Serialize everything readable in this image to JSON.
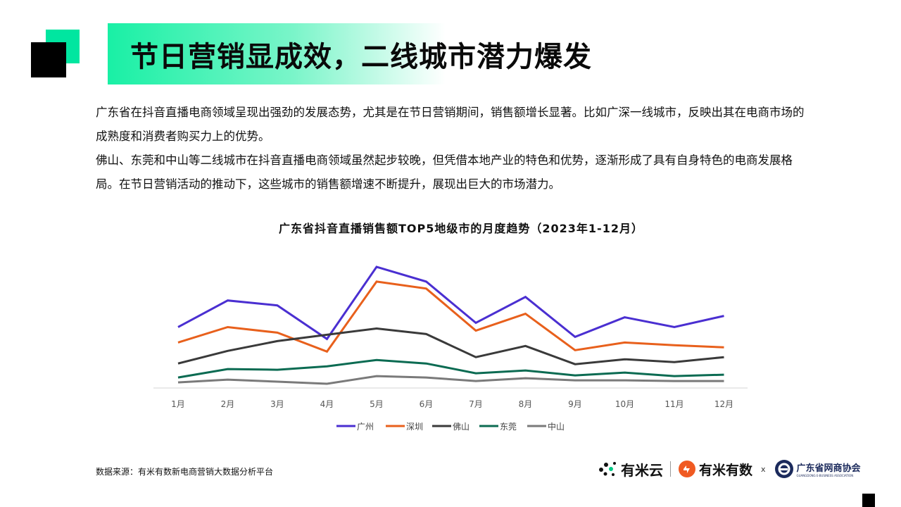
{
  "header": {
    "title": "节日营销显成效，二线城市潜力爆发"
  },
  "intro": {
    "paragraph1": "广东省在抖音直播电商领域呈现出强劲的发展态势，尤其是在节日营销期间，销售额增长显著。比如广深一线城市，反映出其在电商市场的成熟度和消费者购买力上的优势。",
    "paragraph2": "佛山、东莞和中山等二线城市在抖音直播电商领域虽然起步较晚，但凭借本地产业的特色和优势，逐渐形成了具有自身特色的电商发展格局。在节日营销活动的推动下，这些城市的销售额增速不断提升，展现出巨大的市场潜力。"
  },
  "chart_data": {
    "type": "line",
    "title": "广东省抖音直播销售额TOP5地级市的月度趋势（2023年1-12月）",
    "xlabel": "",
    "ylabel": "",
    "categories": [
      "1月",
      "2月",
      "3月",
      "4月",
      "5月",
      "6月",
      "7月",
      "8月",
      "9月",
      "10月",
      "11月",
      "12月"
    ],
    "ylim": [
      0,
      175
    ],
    "grid": false,
    "legend_position": "bottom",
    "series": [
      {
        "name": "广州",
        "color": "#4a2fd1",
        "values": [
          86,
          124,
          117,
          69,
          172,
          151,
          92,
          129,
          72,
          100,
          86,
          102
        ]
      },
      {
        "name": "深圳",
        "color": "#e8601c",
        "values": [
          64,
          86,
          78,
          51,
          151,
          141,
          81,
          105,
          53,
          64,
          60,
          57
        ]
      },
      {
        "name": "佛山",
        "color": "#3a3a3a",
        "values": [
          34,
          52,
          66,
          75,
          84,
          76,
          43,
          59,
          33,
          40,
          36,
          43
        ]
      },
      {
        "name": "东莞",
        "color": "#0b6b52",
        "values": [
          14,
          26,
          25,
          30,
          39,
          34,
          20,
          24,
          17,
          21,
          16,
          18
        ]
      },
      {
        "name": "中山",
        "color": "#7a7a7a",
        "values": [
          7,
          11,
          8,
          5,
          16,
          14,
          9,
          13,
          10,
          10,
          9,
          9
        ]
      }
    ]
  },
  "footer": {
    "source": "数据来源：有米有数新电商营销大数据分析平台",
    "logo1": "有米云",
    "logo2": "有米有数",
    "times": "x",
    "logo3_cn": "广东省网商协会",
    "logo3_en": "GUANGDONG E-BUSINESS ASSOCIATION"
  },
  "colors": {
    "accent": "#00e6a0",
    "logo_orange": "#f05a22",
    "logo_navy": "#1b2a5c"
  }
}
